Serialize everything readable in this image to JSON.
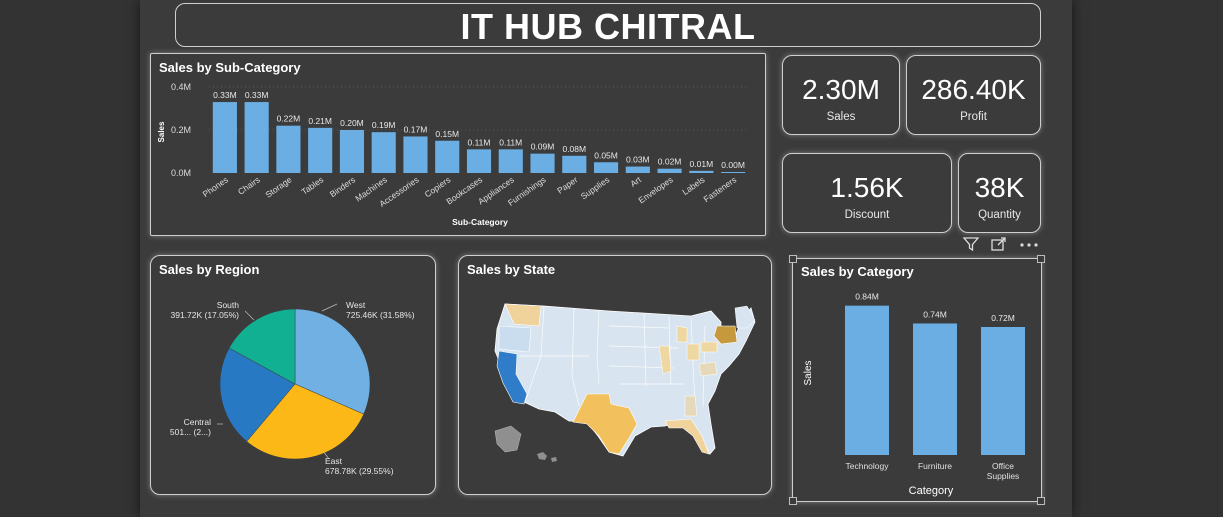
{
  "header": {
    "title": "IT HUB CHITRAL"
  },
  "colors": {
    "bar": "#6aaee3",
    "west": "#70b0e2",
    "east": "#fbb816",
    "central": "#2879c4",
    "south": "#12b092"
  },
  "kpis": [
    {
      "value": "2.30M",
      "label": "Sales"
    },
    {
      "value": "286.40K",
      "label": "Profit"
    },
    {
      "value": "1.56K",
      "label": "Discount"
    },
    {
      "value": "38K",
      "label": "Quantity"
    }
  ],
  "toolbar": {
    "icons": [
      "filter-icon",
      "focus-mode-icon",
      "more-options-icon"
    ]
  },
  "chart_data": [
    {
      "type": "bar",
      "title": "Sales by Sub-Category",
      "xlabel": "Sub-Category",
      "ylabel": "Sales",
      "ylim": [
        0,
        0.4
      ],
      "yticks": [
        "0.0M",
        "0.2M",
        "0.4M"
      ],
      "categories": [
        "Phones",
        "Chairs",
        "Storage",
        "Tables",
        "Binders",
        "Machines",
        "Accessories",
        "Copiers",
        "Bookcases",
        "Appliances",
        "Furnishings",
        "Paper",
        "Supplies",
        "Art",
        "Envelopes",
        "Labels",
        "Fasteners"
      ],
      "values": [
        0.33,
        0.33,
        0.22,
        0.21,
        0.2,
        0.19,
        0.17,
        0.15,
        0.11,
        0.11,
        0.09,
        0.08,
        0.05,
        0.03,
        0.02,
        0.01,
        0.0
      ],
      "labels": [
        "0.33M",
        "0.33M",
        "0.22M",
        "0.21M",
        "0.20M",
        "0.19M",
        "0.17M",
        "0.15M",
        "0.11M",
        "0.11M",
        "0.09M",
        "0.08M",
        "0.05M",
        "0.03M",
        "0.02M",
        "0.01M",
        "0.00M"
      ]
    },
    {
      "type": "pie",
      "title": "Sales by Region",
      "slices": [
        {
          "name": "West",
          "value": 725.46,
          "label": "725.46K (31.58%)"
        },
        {
          "name": "East",
          "value": 678.78,
          "label": "678.78K (29.55%)"
        },
        {
          "name": "Central",
          "value": 501.24,
          "label": "501... (2...)"
        },
        {
          "name": "South",
          "value": 391.72,
          "label": "391.72K (17.05%)"
        }
      ]
    },
    {
      "type": "map",
      "title": "Sales by State"
    },
    {
      "type": "bar",
      "title": "Sales by Category",
      "xlabel": "Category",
      "ylabel": "Sales",
      "categories": [
        "Technology",
        "Furniture",
        "Office Supplies"
      ],
      "values": [
        0.84,
        0.74,
        0.72
      ],
      "labels": [
        "0.84M",
        "0.74M",
        "0.72M"
      ]
    }
  ]
}
